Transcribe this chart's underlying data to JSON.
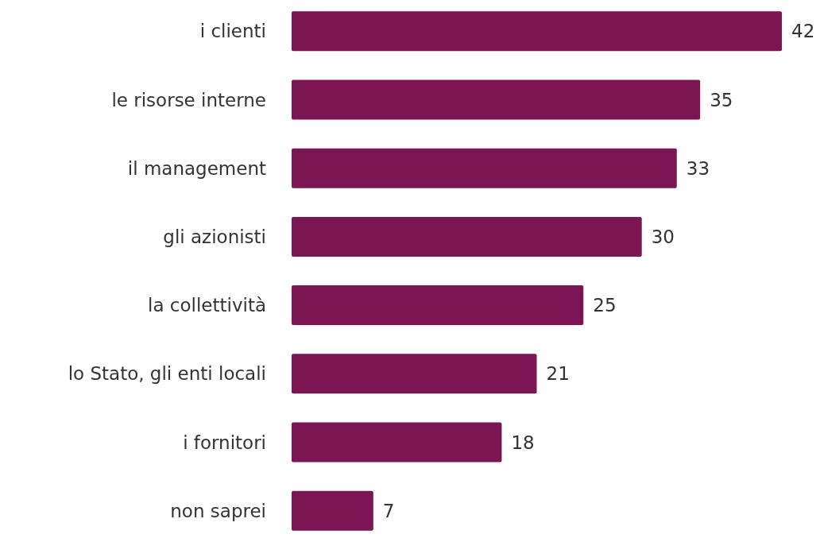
{
  "chart_data": {
    "type": "bar",
    "orientation": "horizontal",
    "categories": [
      "i clienti",
      "le risorse interne",
      "il management",
      "gli azionisti",
      "la collettività",
      "lo Stato, gli enti locali",
      "i fornitori",
      "non saprei"
    ],
    "values": [
      42,
      35,
      33,
      30,
      25,
      21,
      18,
      7
    ],
    "color": "#7b1553",
    "data_labels": true
  }
}
